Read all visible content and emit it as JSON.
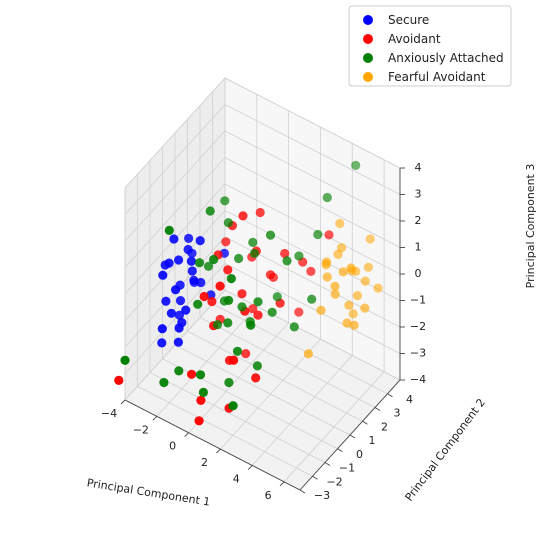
{
  "chart_data": {
    "type": "scatter",
    "projection": "3d",
    "grid": true,
    "legend_position": "top-right",
    "xlabel": "Principal Component 1",
    "ylabel": "Principal Component 2",
    "zlabel": "Principal Component 3",
    "xlim": [
      -4,
      7
    ],
    "ylim": [
      -3,
      5
    ],
    "zlim": [
      -4,
      4
    ],
    "xticks": [
      -4,
      -2,
      0,
      2,
      4,
      6
    ],
    "yticks": [
      -3,
      -2,
      -1,
      0,
      1,
      2,
      3,
      4
    ],
    "zticks": [
      -4,
      -3,
      -2,
      -1,
      0,
      1,
      2,
      3,
      4
    ],
    "series": [
      {
        "name": "Secure",
        "color": "#0000ff",
        "points": [
          [
            -2.5,
            -1,
            1.5
          ],
          [
            -2,
            -0.5,
            1
          ],
          [
            -2.2,
            -1,
            0.8
          ],
          [
            -2.8,
            -1,
            0.5
          ],
          [
            -2,
            -1.5,
            0
          ],
          [
            -2.5,
            -0.5,
            -0.5
          ],
          [
            -3,
            -1,
            -1
          ],
          [
            -2,
            -1,
            -1.5
          ],
          [
            -2.5,
            -1.2,
            -1.2
          ],
          [
            -1.8,
            -0.3,
            -0.2
          ],
          [
            -2.8,
            -1.5,
            0.3
          ],
          [
            -1.5,
            -0.8,
            0.5
          ],
          [
            -2.2,
            -0.2,
            1.2
          ],
          [
            -3.2,
            -0.8,
            0.2
          ],
          [
            -1.6,
            -1.2,
            -0.8
          ],
          [
            -2.4,
            -0.6,
            -1
          ],
          [
            -1.2,
            -0.5,
            0
          ],
          [
            -2.6,
            -1.8,
            -1.5
          ],
          [
            -2,
            0,
            -0.5
          ],
          [
            -1.4,
            -1,
            1
          ],
          [
            -2.7,
            -0.3,
            -1.8
          ],
          [
            -1.9,
            -1.4,
            -2
          ],
          [
            -3.1,
            -1.2,
            -2.5
          ],
          [
            -0.5,
            0.5,
            0.8
          ],
          [
            -0.8,
            -0.2,
            -0.5
          ],
          [
            -1,
            -0.8,
            1.8
          ],
          [
            -2.3,
            0.2,
            0.4
          ],
          [
            -1.7,
            -1.6,
            -1.3
          ]
        ]
      },
      {
        "name": "Avoidant",
        "color": "#ff0000",
        "points": [
          [
            0,
            0.5,
            2
          ],
          [
            0.5,
            -0.5,
            1
          ],
          [
            1,
            0,
            0
          ],
          [
            -0.5,
            -0.5,
            -0.5
          ],
          [
            1.5,
            0.5,
            1.5
          ],
          [
            2,
            1,
            0.5
          ],
          [
            0,
            -1,
            -1
          ],
          [
            0.5,
            1.5,
            -1.5
          ],
          [
            1,
            -1,
            -2
          ],
          [
            2,
            0,
            -0.5
          ],
          [
            -0.5,
            0,
            1
          ],
          [
            1.2,
            1.2,
            2.5
          ],
          [
            1.8,
            -0.8,
            0
          ],
          [
            0.2,
            1.8,
            0.2
          ],
          [
            0.8,
            -1.5,
            1
          ],
          [
            2.5,
            1.5,
            1.2
          ],
          [
            3,
            0.5,
            0
          ],
          [
            -1,
            0.8,
            -2
          ],
          [
            -0.6,
            -2,
            -2.5
          ],
          [
            0.3,
            -2.4,
            -3
          ],
          [
            1.6,
            -1.8,
            -3.2
          ],
          [
            2.6,
            2.5,
            -1.5
          ],
          [
            3.4,
            1.8,
            1
          ],
          [
            -1.2,
            1.5,
            0.5
          ],
          [
            0.6,
            0.8,
            -2.8
          ],
          [
            2.2,
            -2.2,
            -1
          ],
          [
            -0.2,
            -1.5,
            0.3
          ],
          [
            1.4,
            2,
            -0.3
          ],
          [
            3.6,
            2.2,
            0.5
          ],
          [
            0.9,
            0.2,
            2.8
          ],
          [
            4.5,
            2.5,
            2
          ],
          [
            2.8,
            -1.2,
            -2
          ],
          [
            -4,
            -3.5,
            -3
          ],
          [
            0.5,
            -2.8,
            -3.5
          ]
        ]
      },
      {
        "name": "Anxiously Attached",
        "color": "#008000",
        "points": [
          [
            -1,
            0,
            2.5
          ],
          [
            0,
            -1,
            1.5
          ],
          [
            1,
            1,
            1
          ],
          [
            2,
            0,
            0
          ],
          [
            -0.5,
            0.5,
            -1
          ],
          [
            0.5,
            -0.5,
            -1
          ],
          [
            1.5,
            -1,
            -1.5
          ],
          [
            -1,
            -1,
            -0.5
          ],
          [
            0,
            1,
            0.5
          ],
          [
            1,
            0,
            -0.5
          ],
          [
            2,
            1,
            2
          ],
          [
            -1.5,
            0.5,
            0
          ],
          [
            0.5,
            1.5,
            1
          ],
          [
            1.5,
            -1.5,
            1.5
          ],
          [
            2.5,
            0.5,
            -0.5
          ],
          [
            -0.2,
            -1.8,
            -2.5
          ],
          [
            0.8,
            -0.8,
            -3
          ],
          [
            3,
            2,
            1
          ],
          [
            3.5,
            1,
            -1
          ],
          [
            4,
            3,
            3
          ],
          [
            5,
            4,
            4
          ],
          [
            -2,
            -2,
            2.5
          ],
          [
            -0.8,
            1.2,
            1.5
          ],
          [
            1.2,
            0.4,
            -1.2
          ],
          [
            2.2,
            -0.3,
            -2.2
          ],
          [
            -1.8,
            -1.5,
            -3
          ],
          [
            2.8,
            -1.6,
            0.2
          ],
          [
            3.2,
            0.8,
            1.5
          ],
          [
            0.3,
            -2.2,
            -2.8
          ],
          [
            -1.2,
            -0.6,
            0.8
          ],
          [
            1.8,
            1.8,
            -0.8
          ],
          [
            -2.5,
            -1.8,
            -3.5
          ],
          [
            4.2,
            1.5,
            0
          ],
          [
            2.4,
            -2.5,
            -2.5
          ],
          [
            -0.7,
            0.2,
            -1.8
          ],
          [
            1.1,
            -1.2,
            0.4
          ],
          [
            3.8,
            2.5,
            1.8
          ],
          [
            -4,
            -3,
            -2.5
          ],
          [
            -1.5,
            1.8,
            1.8
          ]
        ]
      },
      {
        "name": "Fearful Avoidant",
        "color": "#ffa500",
        "points": [
          [
            4,
            3,
            0
          ],
          [
            4.5,
            3.5,
            1
          ],
          [
            5,
            3,
            0.5
          ],
          [
            5.5,
            3.5,
            -0.5
          ],
          [
            4,
            2.5,
            -1
          ],
          [
            5,
            4,
            0
          ],
          [
            4.5,
            3,
            -0.5
          ],
          [
            5.5,
            3,
            0.8
          ],
          [
            6,
            3.5,
            0.2
          ],
          [
            5.2,
            3.2,
            -0.8
          ],
          [
            4.2,
            3.6,
            0.6
          ],
          [
            4.8,
            2.6,
            0.1
          ],
          [
            5.8,
            4,
            0.4
          ],
          [
            4.6,
            4.2,
            -0.2
          ],
          [
            5.4,
            2.8,
            -1.2
          ],
          [
            6.2,
            3.2,
            -0.6
          ],
          [
            4.4,
            2.4,
            0.9
          ],
          [
            5.6,
            4.4,
            1.2
          ],
          [
            3.8,
            3.2,
            0.4
          ],
          [
            6.4,
            4,
            -0.2
          ],
          [
            5,
            3.8,
            -1.5
          ],
          [
            4,
            4,
            1.5
          ],
          [
            6,
            2.6,
            -1
          ],
          [
            3.6,
            2,
            -2.5
          ]
        ]
      }
    ]
  }
}
